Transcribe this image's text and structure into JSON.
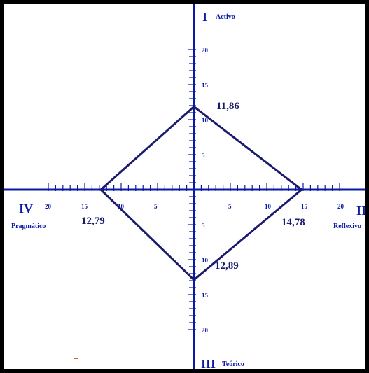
{
  "chart_data": {
    "type": "radar",
    "axis_range": [
      0,
      20
    ],
    "tick_step": 1,
    "tick_labels": [
      "5",
      "10",
      "15",
      "20"
    ],
    "quadrants": [
      {
        "numeral": "I",
        "name": "Activo",
        "direction": "up"
      },
      {
        "numeral": "II",
        "name": "Reflexivo",
        "direction": "right"
      },
      {
        "numeral": "III",
        "name": "Teórico",
        "direction": "down"
      },
      {
        "numeral": "IV",
        "name": "Pragmático",
        "direction": "left"
      }
    ],
    "values": [
      {
        "quadrant": "Activo",
        "value": 11.86,
        "label": "11,86"
      },
      {
        "quadrant": "Reflexivo",
        "value": 14.78,
        "label": "14,78"
      },
      {
        "quadrant": "Teórico",
        "value": 12.89,
        "label": "12,89"
      },
      {
        "quadrant": "Pragmático",
        "value": 12.79,
        "label": "12,79"
      }
    ],
    "colors": {
      "axis": "#0a1aa8",
      "polygon": "#1a1a6e",
      "frame": "#000000"
    }
  }
}
